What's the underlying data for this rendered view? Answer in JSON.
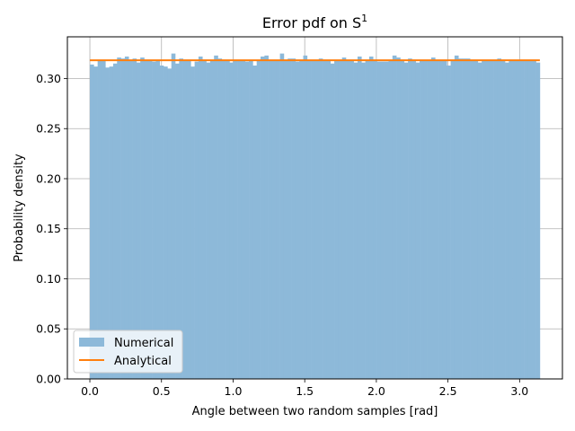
{
  "chart_data": {
    "type": "bar",
    "title": "Error pdf on S",
    "title_superscript": "1",
    "xlabel": "Angle between two random samples [rad]",
    "ylabel": "Probability density",
    "xlim": [
      -0.157,
      3.299
    ],
    "ylim": [
      0.0,
      0.3417
    ],
    "xticks": [
      0.0,
      0.5,
      1.0,
      1.5,
      2.0,
      2.5,
      3.0
    ],
    "xtick_labels": [
      "0.0",
      "0.5",
      "1.0",
      "1.5",
      "2.0",
      "2.5",
      "3.0"
    ],
    "yticks": [
      0.0,
      0.05,
      0.1,
      0.15,
      0.2,
      0.25,
      0.3
    ],
    "ytick_labels": [
      "0.00",
      "0.05",
      "0.10",
      "0.15",
      "0.20",
      "0.25",
      "0.30"
    ],
    "grid": true,
    "legend_position": "lower-left",
    "series": [
      {
        "name": "Numerical",
        "kind": "histogram",
        "color": "#8db9d9",
        "bin_start": 0.0,
        "bin_end": 3.14159,
        "values": [
          0.314,
          0.312,
          0.318,
          0.318,
          0.311,
          0.312,
          0.315,
          0.321,
          0.32,
          0.322,
          0.318,
          0.32,
          0.316,
          0.321,
          0.318,
          0.318,
          0.317,
          0.318,
          0.313,
          0.312,
          0.31,
          0.325,
          0.315,
          0.32,
          0.318,
          0.318,
          0.312,
          0.317,
          0.322,
          0.318,
          0.316,
          0.318,
          0.323,
          0.32,
          0.318,
          0.318,
          0.316,
          0.318,
          0.318,
          0.318,
          0.317,
          0.318,
          0.313,
          0.318,
          0.322,
          0.323,
          0.318,
          0.318,
          0.318,
          0.325,
          0.318,
          0.32,
          0.32,
          0.317,
          0.318,
          0.323,
          0.318,
          0.318,
          0.318,
          0.32,
          0.318,
          0.318,
          0.315,
          0.318,
          0.318,
          0.321,
          0.318,
          0.318,
          0.316,
          0.322,
          0.316,
          0.318,
          0.322,
          0.318,
          0.317,
          0.317,
          0.317,
          0.318,
          0.323,
          0.321,
          0.318,
          0.316,
          0.32,
          0.318,
          0.316,
          0.318,
          0.318,
          0.318,
          0.321,
          0.318,
          0.318,
          0.318,
          0.313,
          0.318,
          0.323,
          0.32,
          0.32,
          0.32,
          0.318,
          0.318,
          0.316,
          0.318,
          0.318,
          0.318,
          0.318,
          0.32,
          0.318,
          0.316,
          0.318,
          0.318,
          0.318,
          0.318,
          0.318,
          0.318,
          0.318,
          0.316
        ]
      },
      {
        "name": "Analytical",
        "kind": "line",
        "color": "#ff7f0e",
        "x": [
          0.0,
          3.14159
        ],
        "y": [
          0.3183,
          0.3183
        ]
      }
    ]
  }
}
